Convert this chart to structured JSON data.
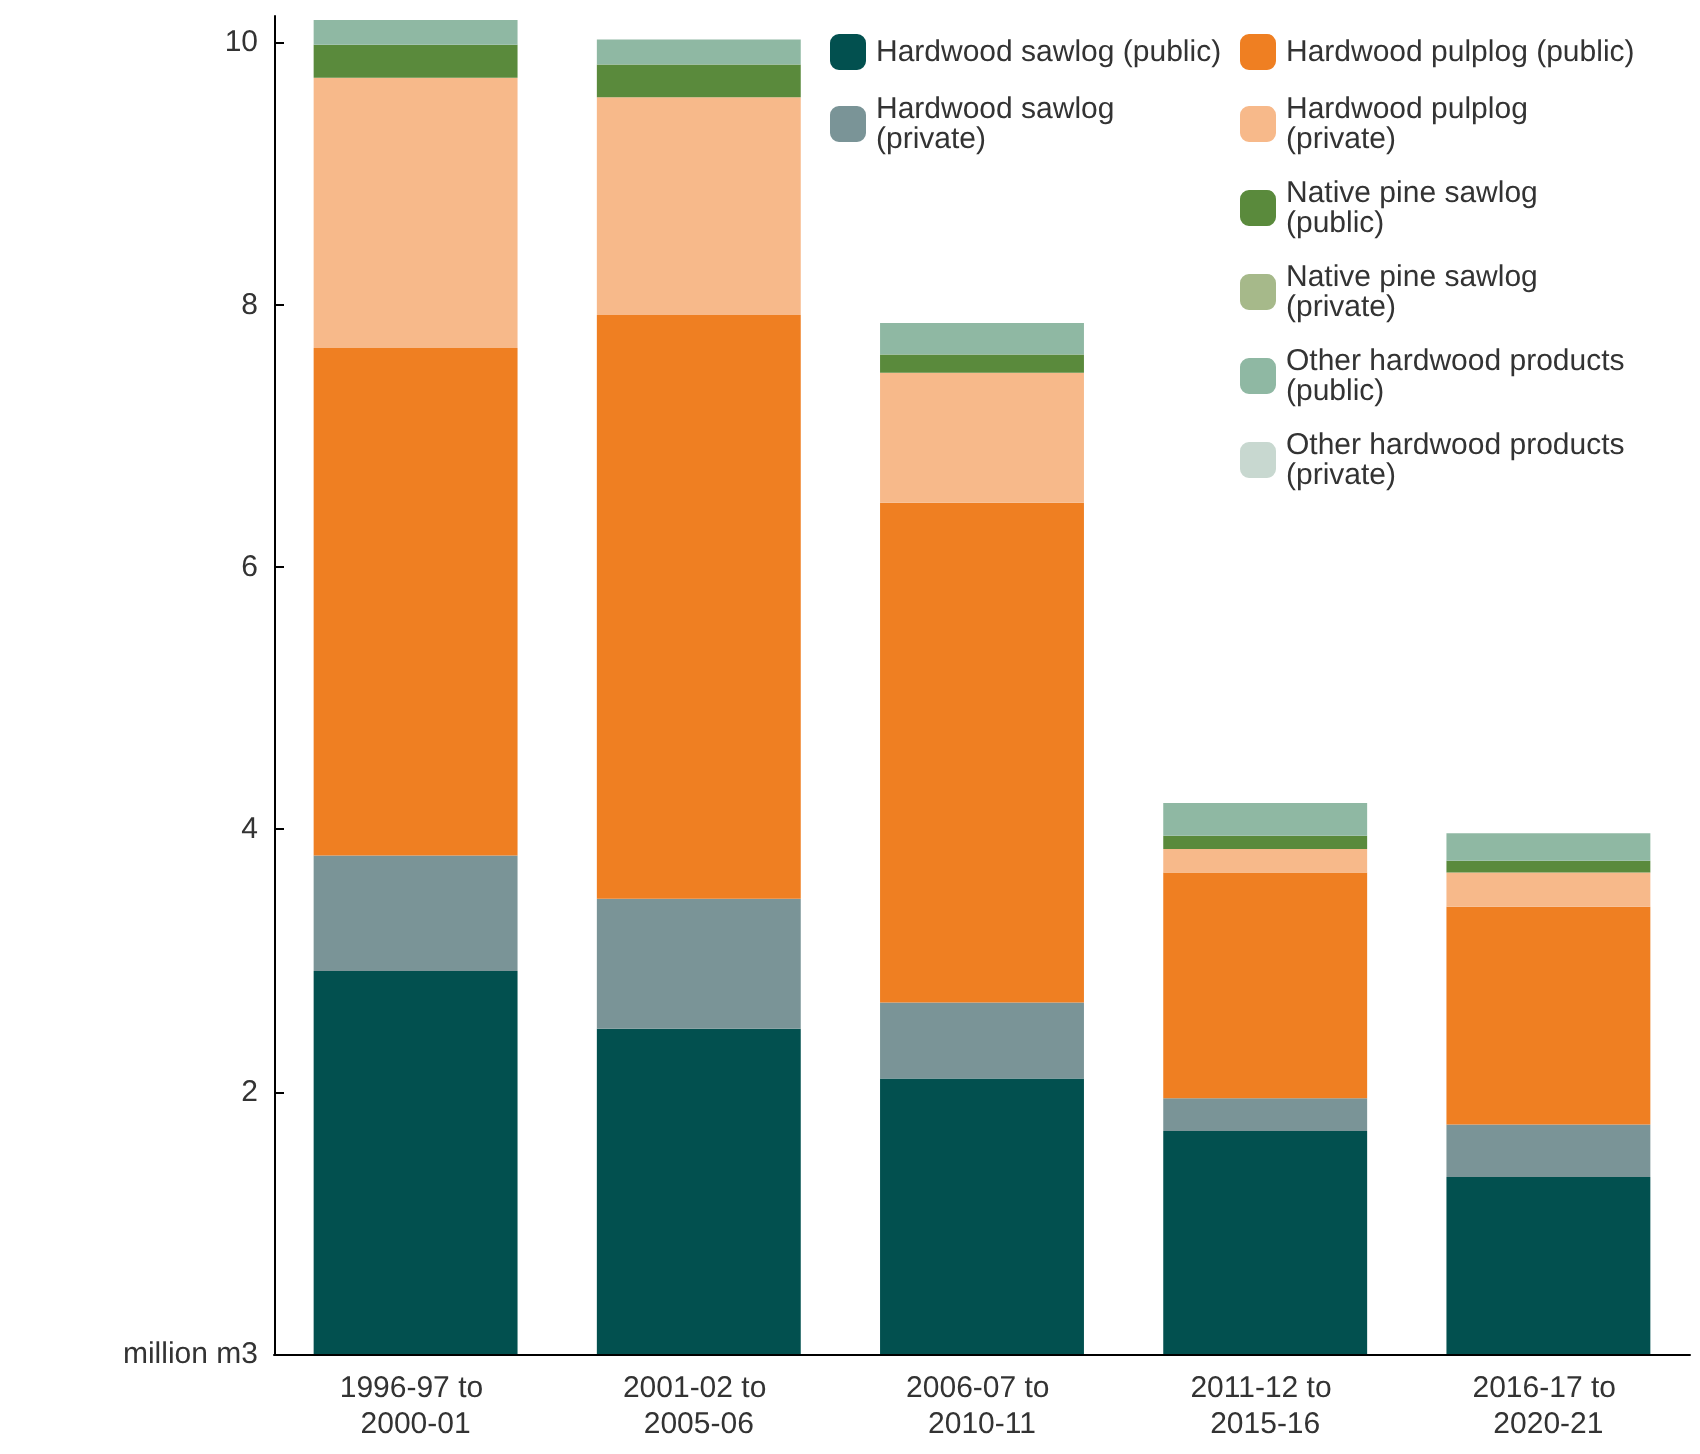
{
  "chart_data": {
    "type": "bar",
    "stacked": true,
    "ylabel": "million m3",
    "categories": [
      "1996-97 to 2000-01",
      "2001-02 to 2005-06",
      "2006-07 to 2010-11",
      "2011-12 to 2015-16",
      "2016-17 to 2020-21"
    ],
    "series": [
      {
        "name": "Hardwood sawlog (public)",
        "color": "#02504f",
        "values": [
          2.92,
          2.48,
          2.1,
          1.7,
          1.35
        ]
      },
      {
        "name": "Hardwood sawlog (private)",
        "color": "#7a9497",
        "values": [
          0.88,
          0.99,
          0.58,
          0.25,
          0.4
        ]
      },
      {
        "name": "Hardwood pulplog (public)",
        "color": "#ef7f22",
        "values": [
          3.87,
          4.45,
          3.81,
          1.72,
          1.66
        ]
      },
      {
        "name": "Hardwood pulplog (private)",
        "color": "#f7b98a",
        "values": [
          2.06,
          1.66,
          0.99,
          0.18,
          0.26
        ]
      },
      {
        "name": "Native pine sawlog (public)",
        "color": "#5a8a3c",
        "values": [
          0.25,
          0.25,
          0.14,
          0.1,
          0.09
        ]
      },
      {
        "name": "Native pine sawlog (private)",
        "color": "#a6b98a",
        "values": [
          0,
          0,
          0,
          0,
          0
        ]
      },
      {
        "name": "Other hardwood products (public)",
        "color": "#8fb8a3",
        "values": [
          0.19,
          0.19,
          0.24,
          0.25,
          0.21
        ]
      },
      {
        "name": "Other hardwood products (private)",
        "color": "#c8d8d0",
        "values": [
          0,
          0,
          0,
          0,
          0
        ]
      }
    ],
    "ylim": [
      0,
      10.2
    ],
    "yticks": [
      2,
      4,
      6,
      8,
      10
    ],
    "grid": false,
    "legend": "top right"
  }
}
